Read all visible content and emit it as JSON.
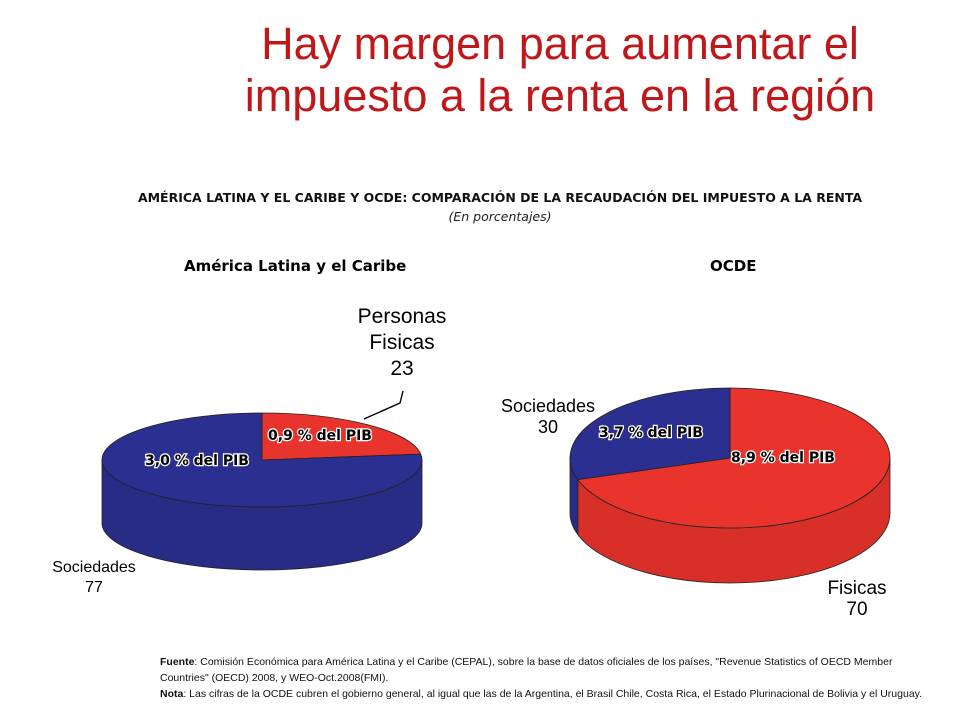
{
  "slide": {
    "title_line1": "Hay margen para aumentar el",
    "title_line2": "impuesto a la renta en la región"
  },
  "chart_heading": "AMÉRICA LATINA Y EL CARIBE Y OCDE: COMPARACIÓN DE LA RECAUDACIÓN DEL IMPUESTO A LA RENTA",
  "chart_subheading": "(En porcentajes)",
  "chart_data": [
    {
      "type": "pie",
      "title": "América Latina y el Caribe",
      "slices": [
        {
          "name_lines": [
            "Personas",
            "Fisicas"
          ],
          "value": 23,
          "value_label": "23",
          "inner_label": "0,9 % del PIB",
          "color": "#e8342c"
        },
        {
          "name_lines": [
            "Sociedades"
          ],
          "value": 77,
          "value_label": "77",
          "inner_label": "3,0 % del PIB",
          "color": "#2b2f8f"
        }
      ]
    },
    {
      "type": "pie",
      "title": "OCDE",
      "slices": [
        {
          "name_lines": [
            "Fisicas"
          ],
          "value": 70,
          "value_label": "70",
          "inner_label": "8,9 % del PIB",
          "color": "#e8342c"
        },
        {
          "name_lines": [
            "Sociedades"
          ],
          "value": 30,
          "value_label": "30",
          "inner_label": "3,7 % del PIB",
          "color": "#2b2f8f"
        }
      ]
    }
  ],
  "footer": {
    "source_label": "Fuente",
    "source_text": ": Comisión Económica para América Latina y el Caribe (CEPAL), sobre la base de datos oficiales de los países, \"Revenue Statistics of OECD Member Countries\" (OECD) 2008, y  WEO-Oct.2008(FMI).",
    "note_label": "Nota",
    "note_text": ": Las cifras de la OCDE cubren el gobierno general, al igual que las de la Argentina, el Brasil Chile, Costa Rica, el Estado Plurinacional de Bolivia y el Uruguay."
  }
}
